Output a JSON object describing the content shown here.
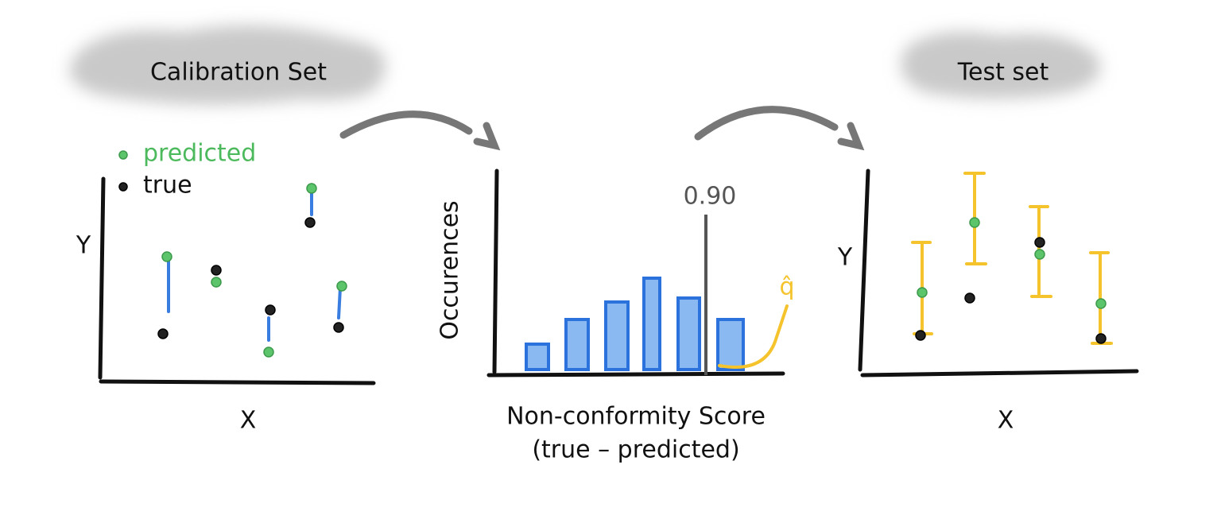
{
  "panels": {
    "calibration": {
      "title": "Calibration Set",
      "legend": [
        "predicted",
        "true"
      ],
      "y_label": "Y",
      "x_label": "X"
    },
    "histogram": {
      "y_label": "Occurences",
      "x_label": [
        "Non-conformity Score",
        "(true – predicted)"
      ],
      "threshold_label": "0.90",
      "quantile_label": "q̂"
    },
    "test": {
      "title": "Test set",
      "y_label": "Y",
      "x_label": "X"
    }
  }
}
